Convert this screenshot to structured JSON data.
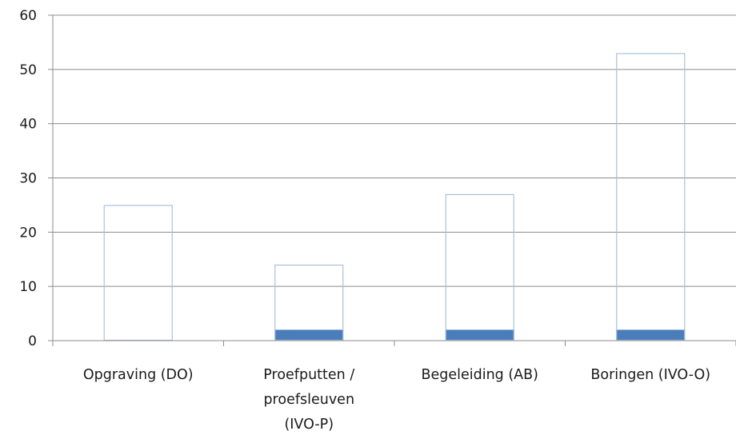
{
  "chart_data": {
    "type": "bar",
    "categories": [
      [
        "Opgraving (DO)"
      ],
      [
        "Proefputten /",
        "proefsleuven",
        "(IVO-P)"
      ],
      [
        "Begeleiding (AB)"
      ],
      [
        "Boringen (IVO-O)"
      ]
    ],
    "series": [
      {
        "values": [
          0,
          2,
          2,
          2
        ],
        "color": "#4a7ebb",
        "style": "filled"
      },
      {
        "values": [
          25,
          14,
          27,
          53
        ],
        "color": "#a9c1e0",
        "style": "outline"
      }
    ],
    "ylim": [
      0,
      60
    ],
    "yticks": [
      0,
      10,
      20,
      30,
      40,
      50,
      60
    ],
    "grid": true,
    "title": "",
    "xlabel": "",
    "ylabel": ""
  }
}
